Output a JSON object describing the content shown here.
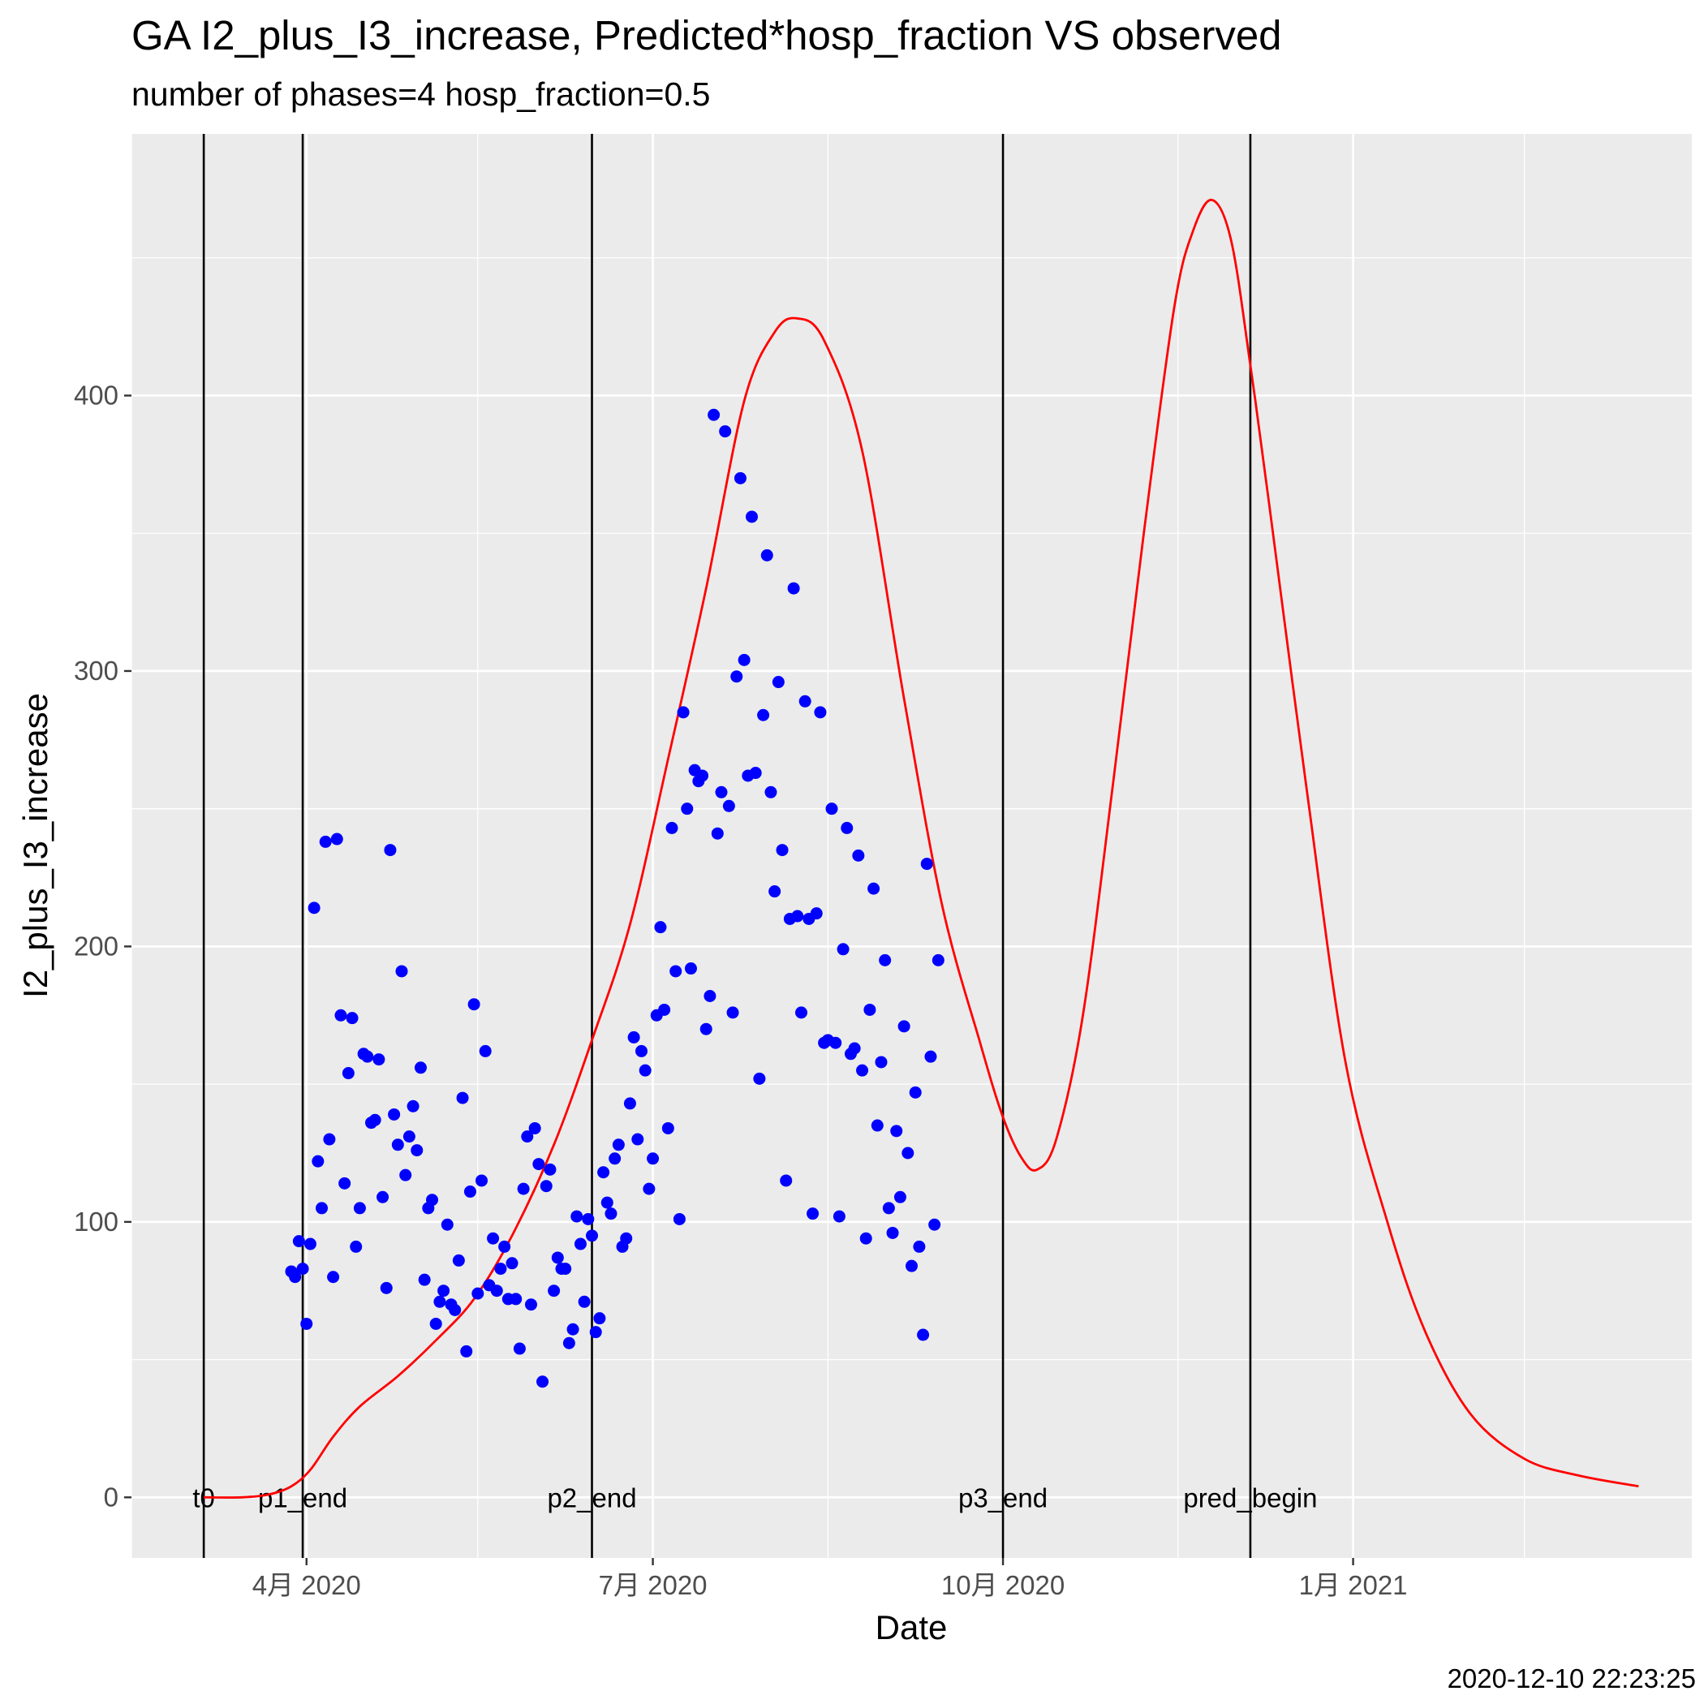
{
  "title": "GA I2_plus_I3_increase, Predicted*hosp_fraction VS observed",
  "subtitle": "number of phases=4   hosp_fraction=0.5",
  "timestamp": "2020-12-10 22:23:25",
  "chart_data": {
    "type": "scatter",
    "xlabel": "Date",
    "ylabel": "I2_plus_I3_increase",
    "x_axis": "date",
    "xlim": [
      "2020-02-15",
      "2021-03-31"
    ],
    "ylim": [
      -22,
      495
    ],
    "x_ticks": [
      {
        "date": "2020-04-01",
        "label": "4月 2020"
      },
      {
        "date": "2020-07-01",
        "label": "7月 2020"
      },
      {
        "date": "2020-10-01",
        "label": "10月 2020"
      },
      {
        "date": "2021-01-01",
        "label": "1月 2021"
      }
    ],
    "x_minor_ticks": [
      "2020-02-15",
      "2020-05-16",
      "2020-08-16",
      "2020-11-16",
      "2021-02-15"
    ],
    "y_ticks": [
      0,
      100,
      200,
      300,
      400
    ],
    "y_minor_ticks": [
      50,
      150,
      250,
      350,
      450
    ],
    "grid": true,
    "colors": {
      "panel": "#ebebeb",
      "grid": "#ffffff",
      "points": "#0000ff",
      "line": "#ff0000",
      "vlines": "#000000"
    },
    "vlines": [
      {
        "date": "2020-03-05",
        "label": "t0"
      },
      {
        "date": "2020-03-31",
        "label": "p1_end"
      },
      {
        "date": "2020-06-15",
        "label": "p2_end"
      },
      {
        "date": "2020-10-01",
        "label": "p3_end"
      },
      {
        "date": "2020-12-05",
        "label": "pred_begin"
      }
    ],
    "series": [
      {
        "kind": "points",
        "values": [
          [
            "2020-03-28",
            82
          ],
          [
            "2020-03-29",
            80
          ],
          [
            "2020-03-30",
            93
          ],
          [
            "2020-03-31",
            83
          ],
          [
            "2020-04-01",
            63
          ],
          [
            "2020-04-02",
            92
          ],
          [
            "2020-04-03",
            214
          ],
          [
            "2020-04-04",
            122
          ],
          [
            "2020-04-05",
            105
          ],
          [
            "2020-04-06",
            238
          ],
          [
            "2020-04-07",
            130
          ],
          [
            "2020-04-08",
            80
          ],
          [
            "2020-04-09",
            239
          ],
          [
            "2020-04-10",
            175
          ],
          [
            "2020-04-11",
            114
          ],
          [
            "2020-04-12",
            154
          ],
          [
            "2020-04-13",
            174
          ],
          [
            "2020-04-14",
            91
          ],
          [
            "2020-04-15",
            105
          ],
          [
            "2020-04-16",
            161
          ],
          [
            "2020-04-17",
            160
          ],
          [
            "2020-04-18",
            136
          ],
          [
            "2020-04-19",
            137
          ],
          [
            "2020-04-20",
            159
          ],
          [
            "2020-04-21",
            109
          ],
          [
            "2020-04-22",
            76
          ],
          [
            "2020-04-23",
            235
          ],
          [
            "2020-04-24",
            139
          ],
          [
            "2020-04-25",
            128
          ],
          [
            "2020-04-26",
            191
          ],
          [
            "2020-04-27",
            117
          ],
          [
            "2020-04-28",
            131
          ],
          [
            "2020-04-29",
            142
          ],
          [
            "2020-04-30",
            126
          ],
          [
            "2020-05-01",
            156
          ],
          [
            "2020-05-02",
            79
          ],
          [
            "2020-05-03",
            105
          ],
          [
            "2020-05-04",
            108
          ],
          [
            "2020-05-05",
            63
          ],
          [
            "2020-05-06",
            71
          ],
          [
            "2020-05-07",
            75
          ],
          [
            "2020-05-08",
            99
          ],
          [
            "2020-05-09",
            70
          ],
          [
            "2020-05-10",
            68
          ],
          [
            "2020-05-11",
            86
          ],
          [
            "2020-05-12",
            145
          ],
          [
            "2020-05-13",
            53
          ],
          [
            "2020-05-14",
            111
          ],
          [
            "2020-05-15",
            179
          ],
          [
            "2020-05-16",
            74
          ],
          [
            "2020-05-17",
            115
          ],
          [
            "2020-05-18",
            162
          ],
          [
            "2020-05-19",
            77
          ],
          [
            "2020-05-20",
            94
          ],
          [
            "2020-05-21",
            75
          ],
          [
            "2020-05-22",
            83
          ],
          [
            "2020-05-23",
            91
          ],
          [
            "2020-05-24",
            72
          ],
          [
            "2020-05-25",
            85
          ],
          [
            "2020-05-26",
            72
          ],
          [
            "2020-05-27",
            54
          ],
          [
            "2020-05-28",
            112
          ],
          [
            "2020-05-29",
            131
          ],
          [
            "2020-05-30",
            70
          ],
          [
            "2020-05-31",
            134
          ],
          [
            "2020-06-01",
            121
          ],
          [
            "2020-06-02",
            42
          ],
          [
            "2020-06-03",
            113
          ],
          [
            "2020-06-04",
            119
          ],
          [
            "2020-06-05",
            75
          ],
          [
            "2020-06-06",
            87
          ],
          [
            "2020-06-07",
            83
          ],
          [
            "2020-06-08",
            83
          ],
          [
            "2020-06-09",
            56
          ],
          [
            "2020-06-10",
            61
          ],
          [
            "2020-06-11",
            102
          ],
          [
            "2020-06-12",
            92
          ],
          [
            "2020-06-13",
            71
          ],
          [
            "2020-06-14",
            101
          ],
          [
            "2020-06-15",
            95
          ],
          [
            "2020-06-16",
            60
          ],
          [
            "2020-06-17",
            65
          ],
          [
            "2020-06-18",
            118
          ],
          [
            "2020-06-19",
            107
          ],
          [
            "2020-06-20",
            103
          ],
          [
            "2020-06-21",
            123
          ],
          [
            "2020-06-22",
            128
          ],
          [
            "2020-06-23",
            91
          ],
          [
            "2020-06-24",
            94
          ],
          [
            "2020-06-25",
            143
          ],
          [
            "2020-06-26",
            167
          ],
          [
            "2020-06-27",
            130
          ],
          [
            "2020-06-28",
            162
          ],
          [
            "2020-06-29",
            155
          ],
          [
            "2020-06-30",
            112
          ],
          [
            "2020-07-01",
            123
          ],
          [
            "2020-07-02",
            175
          ],
          [
            "2020-07-03",
            207
          ],
          [
            "2020-07-04",
            177
          ],
          [
            "2020-07-05",
            134
          ],
          [
            "2020-07-06",
            243
          ],
          [
            "2020-07-07",
            191
          ],
          [
            "2020-07-08",
            101
          ],
          [
            "2020-07-09",
            285
          ],
          [
            "2020-07-10",
            250
          ],
          [
            "2020-07-11",
            192
          ],
          [
            "2020-07-12",
            264
          ],
          [
            "2020-07-13",
            260
          ],
          [
            "2020-07-14",
            262
          ],
          [
            "2020-07-15",
            170
          ],
          [
            "2020-07-16",
            182
          ],
          [
            "2020-07-17",
            393
          ],
          [
            "2020-07-18",
            241
          ],
          [
            "2020-07-19",
            256
          ],
          [
            "2020-07-20",
            387
          ],
          [
            "2020-07-21",
            251
          ],
          [
            "2020-07-22",
            176
          ],
          [
            "2020-07-23",
            298
          ],
          [
            "2020-07-24",
            370
          ],
          [
            "2020-07-25",
            304
          ],
          [
            "2020-07-26",
            262
          ],
          [
            "2020-07-27",
            356
          ],
          [
            "2020-07-28",
            263
          ],
          [
            "2020-07-29",
            152
          ],
          [
            "2020-07-30",
            284
          ],
          [
            "2020-07-31",
            342
          ],
          [
            "2020-08-01",
            256
          ],
          [
            "2020-08-02",
            220
          ],
          [
            "2020-08-03",
            296
          ],
          [
            "2020-08-04",
            235
          ],
          [
            "2020-08-05",
            115
          ],
          [
            "2020-08-06",
            210
          ],
          [
            "2020-08-07",
            330
          ],
          [
            "2020-08-08",
            211
          ],
          [
            "2020-08-09",
            176
          ],
          [
            "2020-08-10",
            289
          ],
          [
            "2020-08-11",
            210
          ],
          [
            "2020-08-12",
            103
          ],
          [
            "2020-08-13",
            212
          ],
          [
            "2020-08-14",
            285
          ],
          [
            "2020-08-15",
            165
          ],
          [
            "2020-08-16",
            166
          ],
          [
            "2020-08-17",
            250
          ],
          [
            "2020-08-18",
            165
          ],
          [
            "2020-08-19",
            102
          ],
          [
            "2020-08-20",
            199
          ],
          [
            "2020-08-21",
            243
          ],
          [
            "2020-08-22",
            161
          ],
          [
            "2020-08-23",
            163
          ],
          [
            "2020-08-24",
            233
          ],
          [
            "2020-08-25",
            155
          ],
          [
            "2020-08-26",
            94
          ],
          [
            "2020-08-27",
            177
          ],
          [
            "2020-08-28",
            221
          ],
          [
            "2020-08-29",
            135
          ],
          [
            "2020-08-30",
            158
          ],
          [
            "2020-08-31",
            195
          ],
          [
            "2020-09-01",
            105
          ],
          [
            "2020-09-02",
            96
          ],
          [
            "2020-09-03",
            133
          ],
          [
            "2020-09-04",
            109
          ],
          [
            "2020-09-05",
            171
          ],
          [
            "2020-09-06",
            125
          ],
          [
            "2020-09-07",
            84
          ],
          [
            "2020-09-08",
            147
          ],
          [
            "2020-09-09",
            91
          ],
          [
            "2020-09-10",
            59
          ],
          [
            "2020-09-11",
            230
          ],
          [
            "2020-09-12",
            160
          ],
          [
            "2020-09-13",
            99
          ],
          [
            "2020-09-14",
            195
          ]
        ]
      },
      {
        "kind": "line",
        "values": [
          [
            "2020-03-05",
            0
          ],
          [
            "2020-03-15",
            0
          ],
          [
            "2020-03-22",
            1
          ],
          [
            "2020-03-28",
            4
          ],
          [
            "2020-04-02",
            10
          ],
          [
            "2020-04-08",
            22
          ],
          [
            "2020-04-15",
            33
          ],
          [
            "2020-04-25",
            44
          ],
          [
            "2020-05-05",
            57
          ],
          [
            "2020-05-15",
            72
          ],
          [
            "2020-05-25",
            95
          ],
          [
            "2020-06-05",
            128
          ],
          [
            "2020-06-15",
            166
          ],
          [
            "2020-06-25",
            208
          ],
          [
            "2020-07-05",
            268
          ],
          [
            "2020-07-15",
            330
          ],
          [
            "2020-07-25",
            398
          ],
          [
            "2020-08-02",
            423
          ],
          [
            "2020-08-08",
            428
          ],
          [
            "2020-08-15",
            420
          ],
          [
            "2020-08-25",
            380
          ],
          [
            "2020-09-05",
            290
          ],
          [
            "2020-09-15",
            215
          ],
          [
            "2020-09-25",
            165
          ],
          [
            "2020-10-01",
            138
          ],
          [
            "2020-10-06",
            123
          ],
          [
            "2020-10-10",
            119
          ],
          [
            "2020-10-15",
            130
          ],
          [
            "2020-10-22",
            175
          ],
          [
            "2020-10-30",
            260
          ],
          [
            "2020-11-07",
            350
          ],
          [
            "2020-11-15",
            432
          ],
          [
            "2020-11-20",
            460
          ],
          [
            "2020-11-25",
            471
          ],
          [
            "2020-11-30",
            456
          ],
          [
            "2020-12-05",
            411
          ],
          [
            "2020-12-10",
            360
          ],
          [
            "2020-12-20",
            255
          ],
          [
            "2020-12-30",
            158
          ],
          [
            "2021-01-10",
            100
          ],
          [
            "2021-01-20",
            60
          ],
          [
            "2021-02-01",
            30
          ],
          [
            "2021-02-15",
            14
          ],
          [
            "2021-03-01",
            8
          ],
          [
            "2021-03-17",
            4
          ]
        ]
      }
    ]
  }
}
